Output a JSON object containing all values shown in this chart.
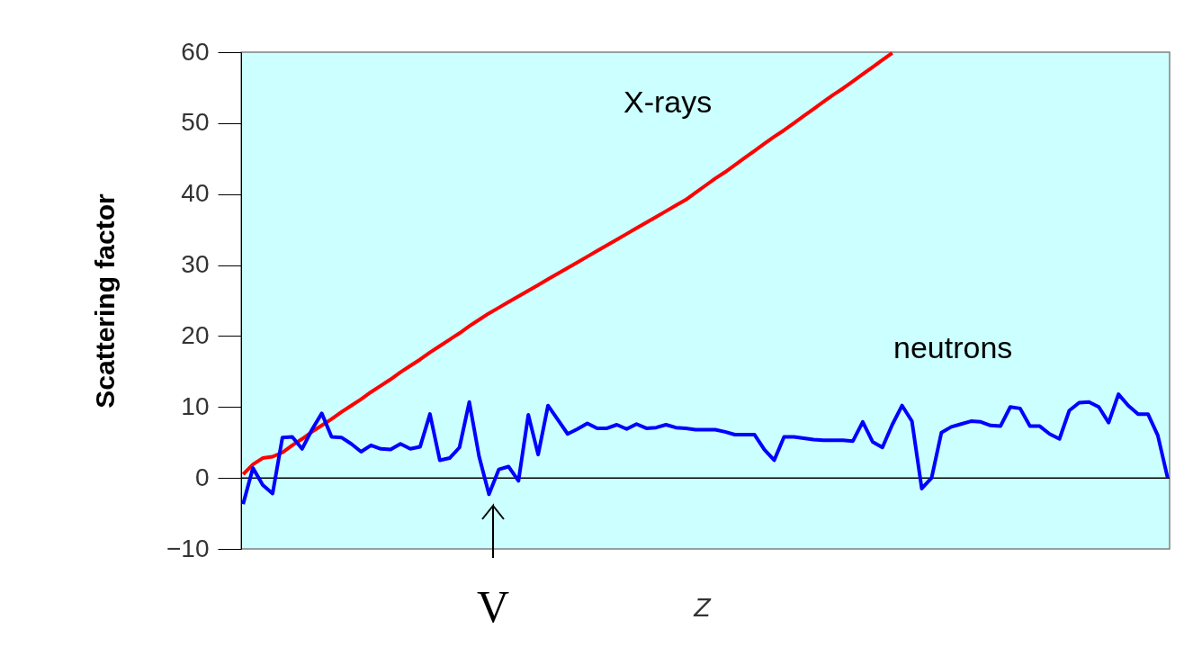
{
  "chart_data": {
    "type": "line",
    "ylabel": "Scattering factor",
    "xlabel": "Z",
    "categories": [
      null,
      null,
      null,
      null,
      null,
      null,
      null,
      null,
      null,
      null,
      null,
      null,
      null,
      null,
      null,
      null,
      null,
      null,
      null,
      null,
      null,
      null,
      null,
      null,
      null,
      null,
      null,
      null,
      null,
      null,
      null,
      null,
      null,
      null,
      null,
      null,
      null,
      null,
      null,
      null,
      null,
      null,
      null,
      null,
      null,
      null,
      null,
      null,
      null,
      null,
      null,
      null,
      null,
      null,
      null,
      null,
      null,
      null,
      null,
      null,
      null,
      null,
      null,
      null,
      null,
      null,
      null,
      null,
      null,
      null,
      null,
      null,
      null,
      null,
      null,
      null,
      null,
      null,
      null,
      null,
      null,
      null,
      null,
      null,
      null,
      null,
      null,
      null,
      null,
      null,
      null,
      null,
      null,
      null,
      null
    ],
    "series": [
      {
        "name": "X-rays",
        "color": "#ff0000",
        "values": [
          0.5,
          1.9,
          2.8,
          3.0,
          3.6,
          4.6,
          5.5,
          6.5,
          7.4,
          8.3,
          9.3,
          10.2,
          11.1,
          12.1,
          13.0,
          13.9,
          14.9,
          15.8,
          16.7,
          17.7,
          18.6,
          19.5,
          20.4,
          21.4,
          22.3,
          23.2,
          24.0,
          24.8,
          25.6,
          26.4,
          27.2,
          28.0,
          28.8,
          29.6,
          30.4,
          31.2,
          32.0,
          32.8,
          33.6,
          34.4,
          35.2,
          36.0,
          36.8,
          37.6,
          38.4,
          39.2,
          40.2,
          41.2,
          42.2,
          43.1,
          44.1,
          45.1,
          46.1,
          47.1,
          48.1,
          49.0,
          50.0,
          51.0,
          52.0,
          53.0,
          54.0,
          54.9,
          55.9,
          56.9,
          57.9,
          58.9,
          59.9,
          null,
          null,
          null,
          null,
          null,
          null,
          null,
          null,
          null,
          null,
          null,
          null,
          null,
          null,
          null,
          null,
          null,
          null,
          null,
          null,
          null,
          null,
          null,
          null,
          null,
          null,
          null,
          null
        ]
      },
      {
        "name": "neutrons",
        "color": "#0000ff",
        "values": [
          -3.7,
          1.4,
          -1.0,
          -2.2,
          5.7,
          5.8,
          4.1,
          6.8,
          9.1,
          5.8,
          5.7,
          4.8,
          3.7,
          4.6,
          4.1,
          4.0,
          4.8,
          4.1,
          4.4,
          9.0,
          2.5,
          2.8,
          4.3,
          10.7,
          3.0,
          -2.3,
          1.2,
          1.6,
          -0.4,
          8.9,
          3.3,
          10.2,
          8.2,
          6.2,
          6.9,
          7.7,
          7.0,
          7.0,
          7.5,
          6.9,
          7.6,
          7.0,
          7.1,
          7.5,
          7.1,
          7.0,
          6.8,
          6.8,
          6.8,
          6.5,
          6.1,
          6.1,
          6.1,
          4.0,
          2.5,
          5.8,
          5.8,
          5.6,
          5.4,
          5.3,
          5.3,
          5.3,
          5.2,
          7.9,
          5.1,
          4.3,
          7.5,
          10.2,
          8.0,
          -1.5,
          0.0,
          6.4,
          7.2,
          7.6,
          8.0,
          7.9,
          7.4,
          7.3,
          10.0,
          9.8,
          7.3,
          7.3,
          6.2,
          5.5,
          9.5,
          10.6,
          10.7,
          10.0,
          7.8,
          11.8,
          10.2,
          9.0,
          9.0,
          6.0,
          0.0
        ]
      }
    ],
    "ylim": [
      -10,
      60
    ],
    "yticks": [
      -10,
      0,
      10,
      20,
      30,
      40,
      50,
      60
    ],
    "tick_labels": "y",
    "grid": false,
    "marker": "none",
    "line_style": "solid",
    "ref_lines": [
      {
        "axis": "y",
        "value": 0,
        "color": "#000000"
      }
    ],
    "annotations": [
      "V"
    ]
  }
}
